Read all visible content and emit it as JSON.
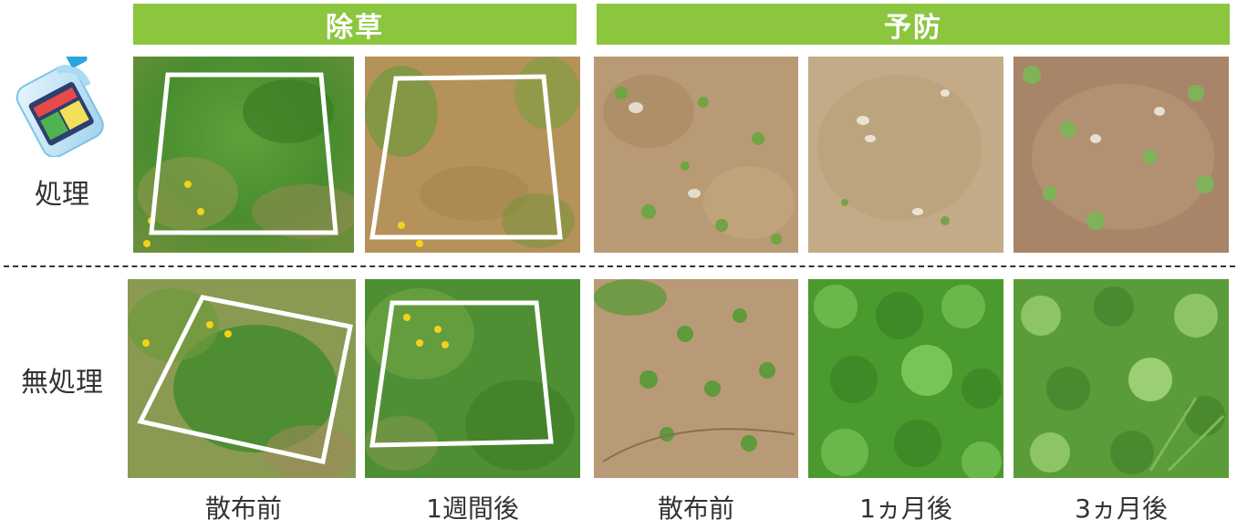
{
  "banners": {
    "weeding": "除草",
    "prevention": "予防"
  },
  "rows": {
    "treated": "処理",
    "untreated": "無処理"
  },
  "captions": {
    "c1": "散布前",
    "c2": "1週間後",
    "c3": "散布前",
    "c4": "1ヵ月後",
    "c5": "3ヵ月後"
  },
  "colors": {
    "banner": "#8cc63f",
    "grass_dark": "#3f8a2a",
    "grass_light": "#7dbd4a",
    "soil": "#b89a74",
    "dry_grass": "#b5925a",
    "frame": "#ffffff",
    "flower": "#f4d21a"
  },
  "icons": {
    "product": "herbicide-bottle-icon"
  }
}
